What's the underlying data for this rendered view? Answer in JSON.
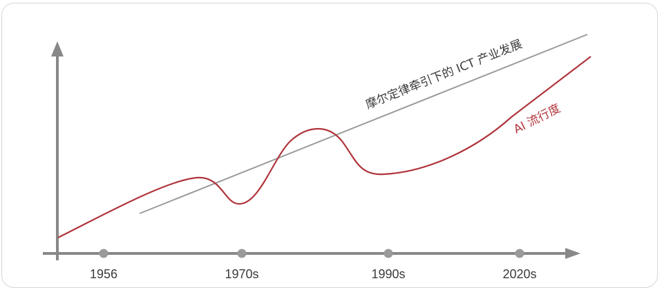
{
  "timeline": {
    "ticks": [
      "1956",
      "1970s",
      "1990s",
      "2020s"
    ]
  },
  "curves": {
    "moore_label": "摩尔定律牵引下的 ICT 产业发展",
    "ai_label": "AI 流行度"
  },
  "colors": {
    "axis": "#888888",
    "moore_line": "#9a9a9a",
    "ai_curve": "#b0343b",
    "tick_dot": "#9a9a9a"
  }
}
